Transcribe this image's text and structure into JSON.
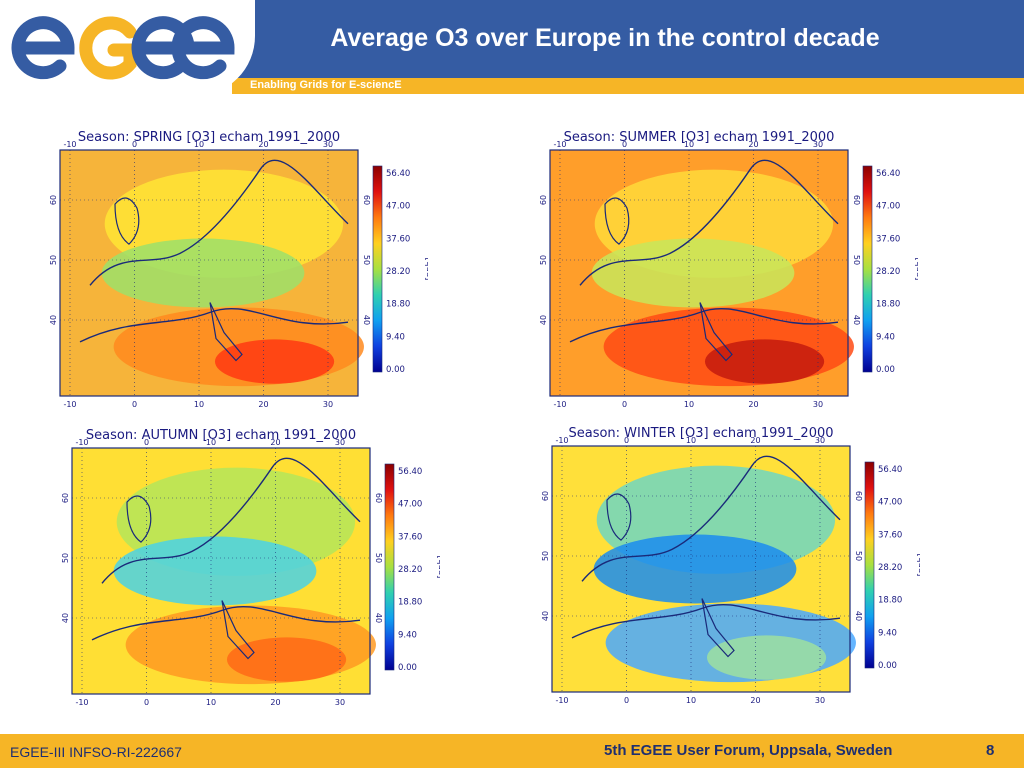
{
  "header": {
    "logo_text": "egee",
    "title": "Average O3 over Europe in the control decade",
    "subtitle": "Enabling Grids for E-sciencE"
  },
  "maps": [
    {
      "title": "Season: SPRING [O3] echam 1991_2000",
      "intensity": "high-south"
    },
    {
      "title": "Season: SUMMER [O3] echam 1991_2000",
      "intensity": "very-high-south"
    },
    {
      "title": "Season: AUTUMN [O3] echam 1991_2000",
      "intensity": "medium"
    },
    {
      "title": "Season: WINTER [O3] echam 1991_2000",
      "intensity": "low"
    }
  ],
  "axes": {
    "x_ticks": [
      "-10",
      "0",
      "10",
      "20",
      "30"
    ],
    "y_ticks": [
      "60",
      "50",
      "40"
    ]
  },
  "colorbar": {
    "unit": "[ppb]",
    "ticks": [
      "56.40",
      "47.00",
      "37.60",
      "28.20",
      "18.80",
      "9.40",
      "0.00"
    ]
  },
  "colors": {
    "header_blue": "#355ca3",
    "accent_orange": "#f6b526",
    "text_navy": "#1f2f70"
  },
  "footer": {
    "left": "EGEE-III INFSO-RI-222667",
    "center": "5th EGEE User Forum, Uppsala, Sweden",
    "page": "8"
  }
}
